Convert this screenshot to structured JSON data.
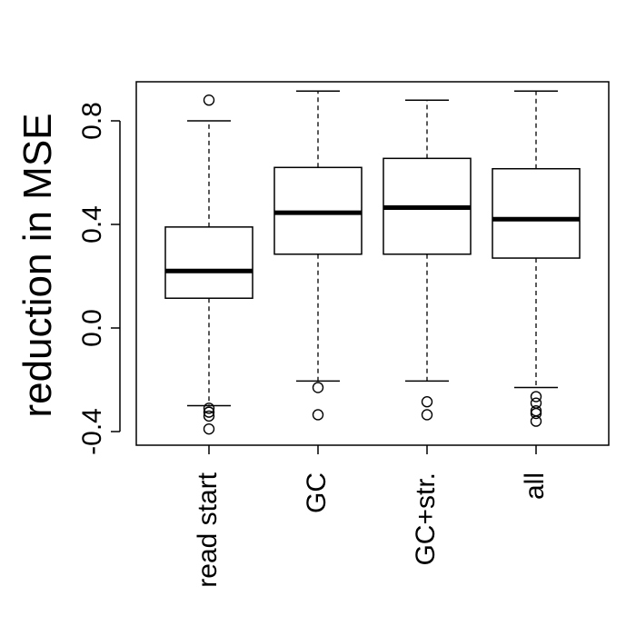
{
  "chart_data": {
    "type": "boxplot",
    "title": "",
    "xlabel": "",
    "ylabel": "reduction in MSE",
    "ylim": [
      -0.45,
      0.95
    ],
    "yticks": [
      -0.4,
      0.0,
      0.4,
      0.8
    ],
    "ytick_labels": [
      "-0.4",
      "0.0",
      "0.4",
      "0.8"
    ],
    "categories": [
      "read start",
      "GC",
      "GC+str.",
      "all"
    ],
    "boxes": [
      {
        "name": "read start",
        "whisker_low": -0.3,
        "q1": 0.115,
        "median": 0.22,
        "q3": 0.39,
        "whisker_high": 0.8,
        "outliers": [
          0.88,
          -0.31,
          -0.325,
          -0.34,
          -0.39
        ]
      },
      {
        "name": "GC",
        "whisker_low": -0.205,
        "q1": 0.285,
        "median": 0.445,
        "q3": 0.62,
        "whisker_high": 0.915,
        "outliers": [
          -0.23,
          -0.335
        ]
      },
      {
        "name": "GC+str.",
        "whisker_low": -0.205,
        "q1": 0.285,
        "median": 0.465,
        "q3": 0.655,
        "whisker_high": 0.88,
        "outliers": [
          -0.285,
          -0.335
        ]
      },
      {
        "name": "all",
        "whisker_low": -0.23,
        "q1": 0.27,
        "median": 0.42,
        "q3": 0.615,
        "whisker_high": 0.915,
        "outliers": [
          -0.265,
          -0.29,
          -0.32,
          -0.33,
          -0.36
        ]
      }
    ],
    "grid": false,
    "legend": "none"
  }
}
